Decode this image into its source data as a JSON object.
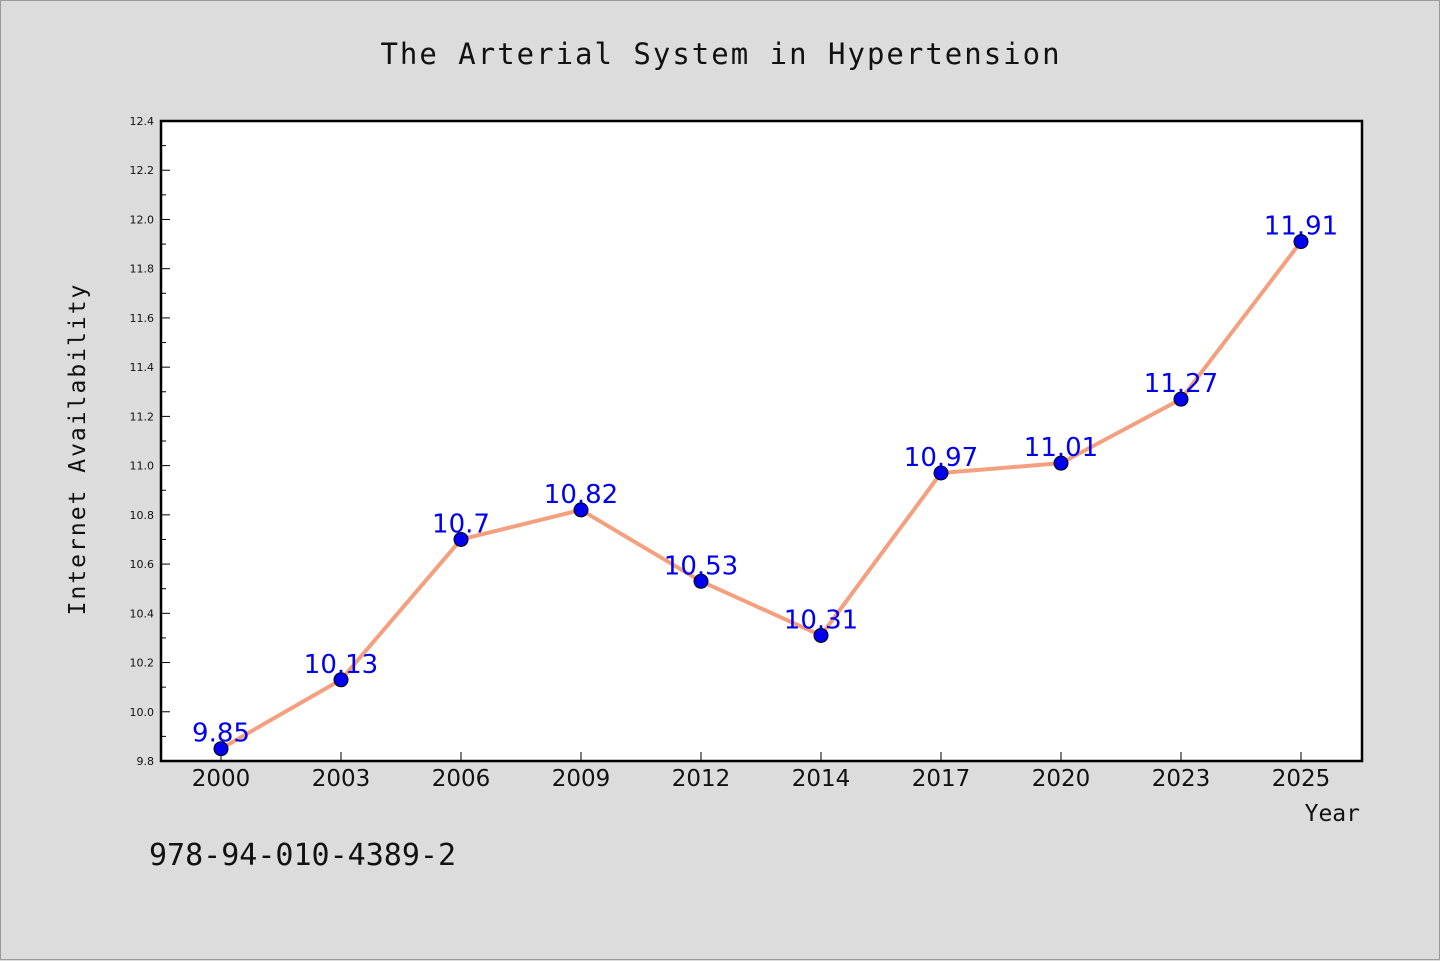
{
  "chart_data": {
    "type": "line",
    "title": "The Arterial System in Hypertension",
    "xlabel": "Year",
    "ylabel": "Internet Availability",
    "categories": [
      "2000",
      "2003",
      "2006",
      "2009",
      "2012",
      "2014",
      "2017",
      "2020",
      "2023",
      "2025"
    ],
    "values": [
      9.85,
      10.13,
      10.7,
      10.82,
      10.53,
      10.31,
      10.97,
      11.01,
      11.27,
      11.91
    ],
    "data_labels": [
      "9.85",
      "10.13",
      "10.7",
      "10.82",
      "10.53",
      "10.31",
      "10.97",
      "11.01",
      "11.27",
      "11.91"
    ],
    "ylim": [
      9.8,
      12.4
    ],
    "yticks": [
      "9.8",
      "10.0",
      "10.2",
      "10.4",
      "10.6",
      "10.8",
      "11.0",
      "11.2",
      "11.4",
      "11.6",
      "11.8",
      "12.0",
      "12.2",
      "12.4"
    ],
    "grid": false,
    "legend": "none",
    "line_color": "#f4a07f",
    "marker_color": "#0000ee",
    "label_color": "#0000ee"
  },
  "footer": {
    "isbn": "978-94-010-4389-2"
  }
}
